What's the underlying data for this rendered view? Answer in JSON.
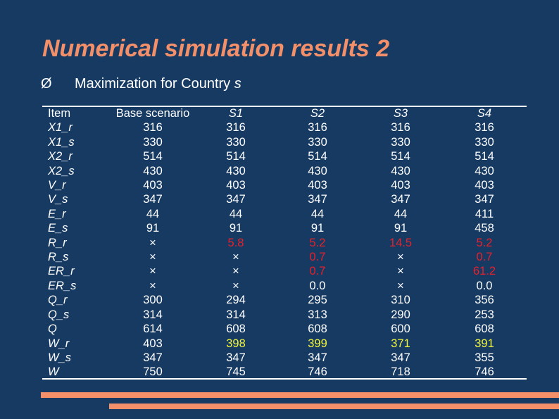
{
  "title": "Numerical simulation results 2",
  "bullet": {
    "arrow": "Ø",
    "text": "Maximization for Country ",
    "subject": "s"
  },
  "table": {
    "columns": [
      "Item",
      "Base scenario",
      "S1",
      "S2",
      "S3",
      "S4"
    ],
    "rows": [
      {
        "item": "X1_r",
        "values": [
          "316",
          "316",
          "316",
          "316",
          "316"
        ]
      },
      {
        "item": "X1_s",
        "values": [
          "330",
          "330",
          "330",
          "330",
          "330"
        ]
      },
      {
        "item": "X2_r",
        "values": [
          "514",
          "514",
          "514",
          "514",
          "514"
        ]
      },
      {
        "item": "X2_s",
        "values": [
          "430",
          "430",
          "430",
          "430",
          "430"
        ]
      },
      {
        "item": "V_r",
        "values": [
          "403",
          "403",
          "403",
          "403",
          "403"
        ]
      },
      {
        "item": "V_s",
        "values": [
          "347",
          "347",
          "347",
          "347",
          "347"
        ]
      },
      {
        "item": "E_r",
        "values": [
          "44",
          "44",
          "44",
          "44",
          "411"
        ]
      },
      {
        "item": "E_s",
        "values": [
          "91",
          "91",
          "91",
          "91",
          "458"
        ]
      },
      {
        "item": "R_r",
        "values": [
          "×",
          "5.8",
          "5.2",
          "14.5",
          "5.2"
        ]
      },
      {
        "item": "R_s",
        "values": [
          "×",
          "×",
          "0.7",
          "×",
          "0.7"
        ]
      },
      {
        "item": "ER_r",
        "values": [
          "×",
          "×",
          "0.7",
          "×",
          "61.2"
        ]
      },
      {
        "item": "ER_s",
        "values": [
          "×",
          "×",
          "0.0",
          "×",
          "0.0"
        ]
      },
      {
        "item": "Q_r",
        "values": [
          "300",
          "294",
          "295",
          "310",
          "356"
        ]
      },
      {
        "item": "Q_s",
        "values": [
          "314",
          "314",
          "313",
          "290",
          "253"
        ]
      },
      {
        "item": "Q",
        "values": [
          "614",
          "608",
          "608",
          "600",
          "608"
        ]
      },
      {
        "item": "W_r",
        "values": [
          "403",
          "398",
          "399",
          "371",
          "391"
        ]
      },
      {
        "item": "W_s",
        "values": [
          "347",
          "347",
          "347",
          "347",
          "355"
        ]
      },
      {
        "item": "W",
        "values": [
          "750",
          "745",
          "746",
          "718",
          "746"
        ]
      }
    ],
    "highlights": {
      "red": [
        [
          8,
          1
        ],
        [
          8,
          2
        ],
        [
          8,
          3
        ],
        [
          8,
          4
        ],
        [
          9,
          2
        ],
        [
          9,
          4
        ],
        [
          10,
          2
        ],
        [
          10,
          4
        ]
      ],
      "yellow": [
        [
          15,
          1
        ],
        [
          15,
          2
        ],
        [
          15,
          3
        ],
        [
          15,
          4
        ]
      ]
    }
  },
  "colors": {
    "background": "#173a63",
    "title": "#f3906a",
    "text": "#ffffff",
    "red": "#e8202a",
    "yellow": "#f2f53a",
    "accent_bar": "#f3906a"
  }
}
